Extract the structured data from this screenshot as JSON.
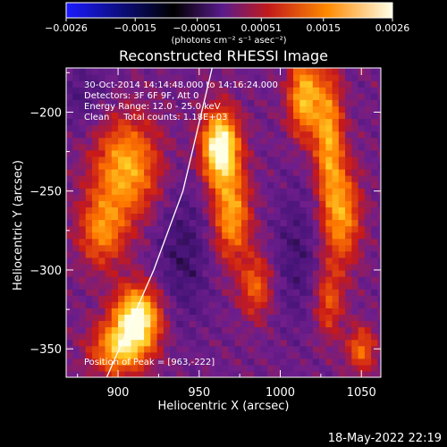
{
  "chart_data": {
    "type": "heatmap",
    "title": "Reconstructed RHESSI Image",
    "xlabel": "Heliocentric X (arcsec)",
    "ylabel": "Heliocentric Y (arcsec)",
    "xlim": [
      868,
      1062
    ],
    "ylim": [
      -368,
      -172
    ],
    "xticks": [
      900,
      950,
      1000,
      1050
    ],
    "yticks": [
      -200,
      -250,
      -300,
      -350
    ],
    "colorbar": {
      "range": [
        -0.0026,
        0.0026
      ],
      "ticks": [
        "-0.0026",
        "-0.0015",
        "-0.00051",
        "0.00051",
        "0.0015",
        "0.0026"
      ],
      "unit_line": "(photons cm⁻² s⁻¹ asec⁻²)"
    },
    "info": {
      "time": "30-Oct-2014 14:14:48.000 to 14:16:24.000",
      "detectors": "Detectors: 3F 6F 9F, Att 0",
      "energy": "Energy Range: 12.0 - 25.0 keV",
      "clean": "Clean     Total counts: 1.18E+03"
    },
    "peak_label": "Position of Peak = [963,-222]",
    "peak": [
      963,
      -222
    ],
    "limb_line": [
      [
        893,
        -368
      ],
      [
        922,
        -300
      ],
      [
        940,
        -250
      ],
      [
        958,
        -172
      ]
    ],
    "sources": [
      {
        "x": 905,
        "y": -235,
        "amp": 0.0017,
        "sx": 14,
        "sy": 22
      },
      {
        "x": 890,
        "y": -275,
        "amp": 0.0013,
        "sx": 10,
        "sy": 16
      },
      {
        "x": 912,
        "y": -330,
        "amp": 0.0024,
        "sx": 10,
        "sy": 14
      },
      {
        "x": 900,
        "y": -350,
        "amp": 0.0016,
        "sx": 12,
        "sy": 12
      },
      {
        "x": 963,
        "y": -222,
        "amp": 0.0026,
        "sx": 8,
        "sy": 16
      },
      {
        "x": 970,
        "y": -265,
        "amp": 0.0016,
        "sx": 8,
        "sy": 20
      },
      {
        "x": 985,
        "y": -310,
        "amp": 0.0011,
        "sx": 7,
        "sy": 14
      },
      {
        "x": 1015,
        "y": -190,
        "amp": 0.0018,
        "sx": 7,
        "sy": 18
      },
      {
        "x": 1030,
        "y": -215,
        "amp": 0.0016,
        "sx": 6,
        "sy": 28
      },
      {
        "x": 1038,
        "y": -265,
        "amp": 0.0015,
        "sx": 8,
        "sy": 22
      },
      {
        "x": 1030,
        "y": -320,
        "amp": 0.001,
        "sx": 6,
        "sy": 16
      },
      {
        "x": 1050,
        "y": -350,
        "amp": 0.0012,
        "sx": 6,
        "sy": 10
      },
      {
        "x": 1010,
        "y": -290,
        "amp": -0.0005,
        "sx": 10,
        "sy": 30
      },
      {
        "x": 940,
        "y": -290,
        "amp": -0.0006,
        "sx": 12,
        "sy": 30
      },
      {
        "x": 880,
        "y": -190,
        "amp": -0.0004,
        "sx": 12,
        "sy": 16
      }
    ]
  },
  "footer": {
    "date": "18-May-2022 22:19"
  }
}
